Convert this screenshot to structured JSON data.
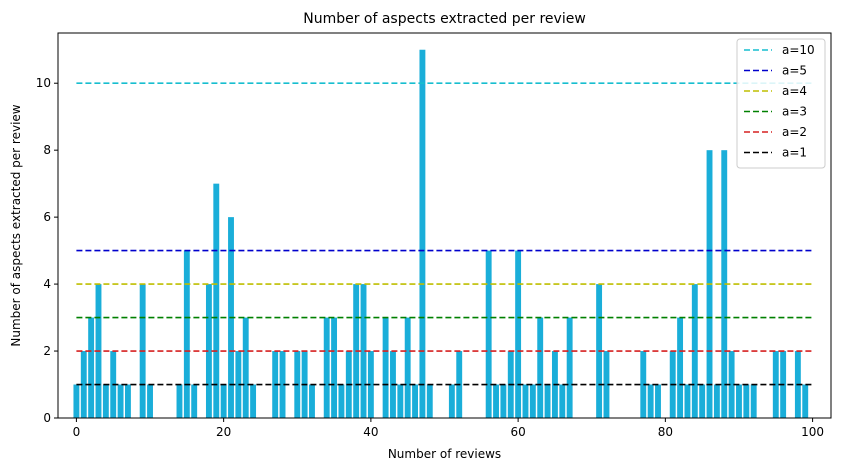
{
  "chart_data": {
    "type": "bar",
    "title": "Number of aspects extracted per review",
    "xlabel": "Number of reviews",
    "ylabel": "Number of aspects extracted per review",
    "xlim": [
      -2.5,
      102.5
    ],
    "ylim": [
      0,
      11.5
    ],
    "xticks": [
      0,
      20,
      40,
      60,
      80,
      100
    ],
    "yticks": [
      0,
      2,
      4,
      6,
      8,
      10
    ],
    "bar_color": "#1aaed9",
    "x": [
      0,
      1,
      2,
      3,
      4,
      5,
      6,
      7,
      8,
      9,
      10,
      11,
      12,
      13,
      14,
      15,
      16,
      17,
      18,
      19,
      20,
      21,
      22,
      23,
      24,
      25,
      26,
      27,
      28,
      29,
      30,
      31,
      32,
      33,
      34,
      35,
      36,
      37,
      38,
      39,
      40,
      41,
      42,
      43,
      44,
      45,
      46,
      47,
      48,
      49,
      50,
      51,
      52,
      53,
      54,
      55,
      56,
      57,
      58,
      59,
      60,
      61,
      62,
      63,
      64,
      65,
      66,
      67,
      68,
      69,
      70,
      71,
      72,
      73,
      74,
      75,
      76,
      77,
      78,
      79,
      80,
      81,
      82,
      83,
      84,
      85,
      86,
      87,
      88,
      89,
      90,
      91,
      92,
      93,
      94,
      95,
      96,
      97,
      98,
      99
    ],
    "values": [
      1,
      2,
      3,
      4,
      1,
      2,
      1,
      1,
      0,
      4,
      1,
      0,
      0,
      0,
      1,
      5,
      1,
      0,
      4,
      7,
      1,
      6,
      2,
      3,
      1,
      0,
      0,
      2,
      2,
      0,
      2,
      2,
      1,
      0,
      3,
      3,
      1,
      2,
      4,
      4,
      2,
      0,
      3,
      2,
      1,
      3,
      1,
      11,
      1,
      0,
      0,
      1,
      2,
      0,
      0,
      0,
      5,
      1,
      1,
      2,
      5,
      1,
      1,
      3,
      1,
      2,
      1,
      3,
      0,
      0,
      0,
      4,
      2,
      0,
      0,
      0,
      0,
      2,
      1,
      1,
      0,
      2,
      3,
      1,
      4,
      1,
      8,
      1,
      8,
      2,
      1,
      1,
      1,
      0,
      0,
      2,
      2,
      0,
      2,
      1
    ],
    "reference_lines": [
      {
        "name": "a=10",
        "y": 10,
        "color": "#17becf"
      },
      {
        "name": "a=5",
        "y": 5,
        "color": "#0000cc"
      },
      {
        "name": "a=4",
        "y": 4,
        "color": "#bfbf00"
      },
      {
        "name": "a=3",
        "y": 3,
        "color": "#008000"
      },
      {
        "name": "a=2",
        "y": 2,
        "color": "#d62020"
      },
      {
        "name": "a=1",
        "y": 1,
        "color": "#000000"
      }
    ],
    "reference_x_range": [
      0,
      100
    ],
    "legend_position": "top-right",
    "grid": false
  }
}
